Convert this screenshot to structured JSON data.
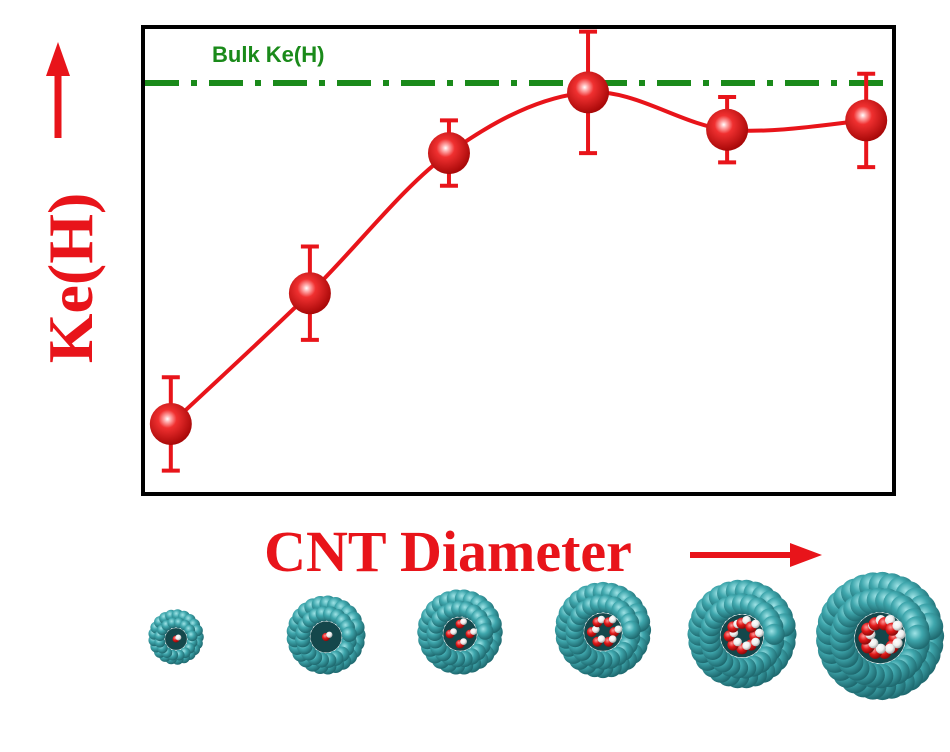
{
  "chart_data": {
    "type": "line",
    "title": "",
    "xlabel": "CNT Diameter",
    "ylabel": "Ke(H)",
    "grid": false,
    "legend": "none",
    "x_ticks_shown": false,
    "y_ticks_shown": false,
    "series": [
      {
        "color": "#e8141a",
        "smooth": true,
        "marker": "sphere",
        "points": [
          {
            "x": 1,
            "y": 0.15,
            "err": 0.1
          },
          {
            "x": 2,
            "y": 0.43,
            "err": 0.1
          },
          {
            "x": 3,
            "y": 0.73,
            "err": 0.07
          },
          {
            "x": 4,
            "y": 0.86,
            "err": 0.13
          },
          {
            "x": 5,
            "y": 0.78,
            "err": 0.07
          },
          {
            "x": 6,
            "y": 0.8,
            "err": 0.1
          }
        ]
      }
    ],
    "xlim": [
      0.8,
      6.2
    ],
    "ylim": [
      0.0,
      1.0
    ],
    "reference_line": {
      "label": "Bulk Ke(H)",
      "y": 0.88,
      "color": "#1a8a1a",
      "style": "dash-dot"
    }
  },
  "colors": {
    "series_red": "#e8141a",
    "bulk_green": "#1a8a1a",
    "cnt_cyan": "#3a9aa0",
    "water_oxygen": "#d81e1e",
    "water_hydrogen": "#f2f2f2"
  },
  "cnt_images": [
    {
      "name": "cnt-1",
      "water_molecules": 1
    },
    {
      "name": "cnt-2",
      "water_molecules": 1
    },
    {
      "name": "cnt-3",
      "water_molecules": 4
    },
    {
      "name": "cnt-4",
      "water_molecules": 6
    },
    {
      "name": "cnt-5",
      "water_molecules": 8
    },
    {
      "name": "cnt-6",
      "water_molecules": 10
    }
  ]
}
